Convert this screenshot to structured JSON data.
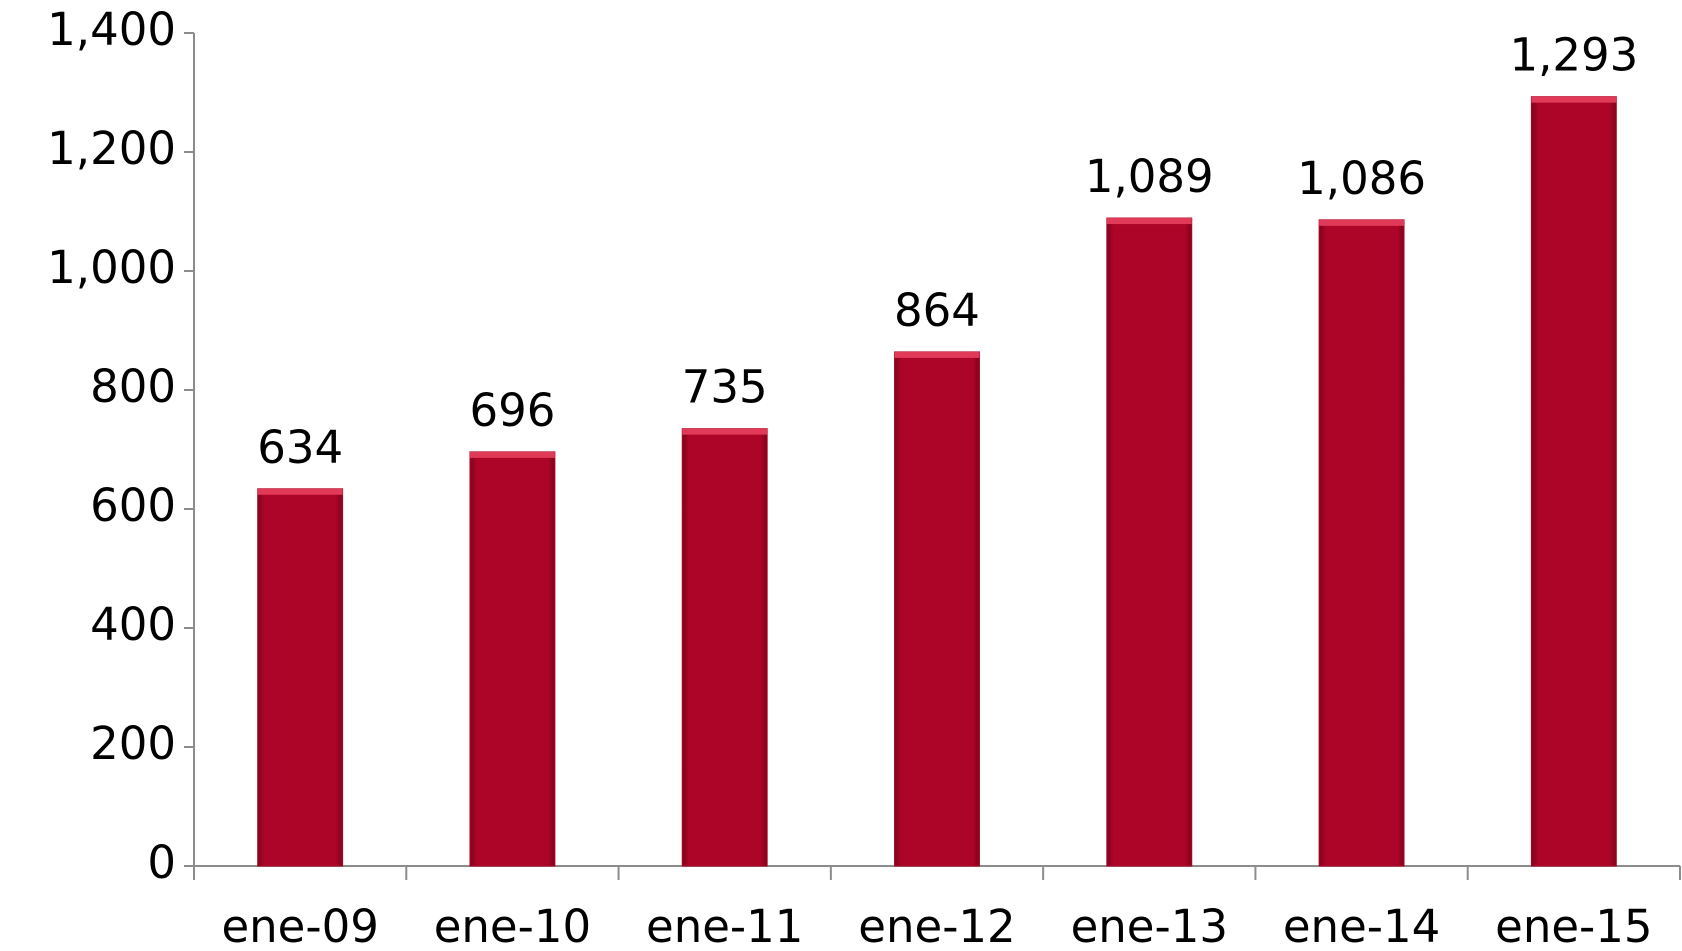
{
  "chart_data": {
    "type": "bar",
    "categories": [
      "ene-09",
      "ene-10",
      "ene-11",
      "ene-12",
      "ene-13",
      "ene-14",
      "ene-15"
    ],
    "values": [
      634,
      696,
      735,
      864,
      1089,
      1086,
      1293
    ],
    "value_labels": [
      "634",
      "696",
      "735",
      "864",
      "1,089",
      "1,086",
      "1,293"
    ],
    "color": "#ad0527",
    "ylim": [
      0,
      1400
    ],
    "yticks": [
      0,
      200,
      400,
      600,
      800,
      {
        "value": 1000,
        "label": "1,000"
      },
      {
        "value": 1200,
        "label": "1,200"
      },
      {
        "value": 1400,
        "label": "1,400"
      }
    ],
    "grid": false
  }
}
